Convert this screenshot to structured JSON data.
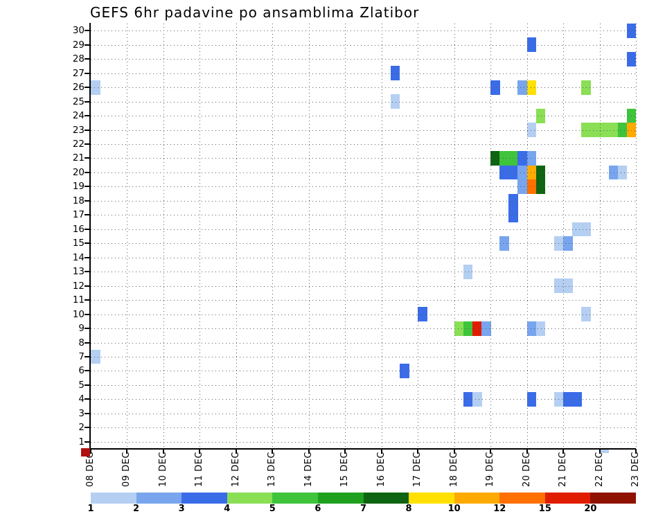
{
  "title": "GEFS 6hr padavine po ansamblima Zlatibor",
  "chart_data": {
    "type": "heatmap",
    "title": "GEFS 6hr padavine po ansamblima Zlatibor",
    "x_axis": {
      "labels": [
        "08 DEC",
        "09 DEC",
        "10 DEC",
        "11 DEC",
        "12 DEC",
        "13 DEC",
        "14 DEC",
        "15 DEC",
        "16 DEC",
        "17 DEC",
        "18 DEC",
        "19 DEC",
        "20 DEC",
        "21 DEC",
        "22 DEC",
        "23 DEC"
      ],
      "steps_per_day": 4,
      "step_hours": 6
    },
    "y_axis": {
      "min": 1,
      "max": 30,
      "tick_labels": [
        "1",
        "2",
        "3",
        "4",
        "5",
        "6",
        "7",
        "8",
        "9",
        "10",
        "11",
        "12",
        "13",
        "14",
        "15",
        "16",
        "17",
        "18",
        "19",
        "20",
        "21",
        "22",
        "23",
        "24",
        "25",
        "26",
        "27",
        "28",
        "29",
        "30"
      ]
    },
    "legend": {
      "thresholds": [
        "1",
        "2",
        "3",
        "4",
        "5",
        "6",
        "7",
        "8",
        "10",
        "12",
        "15",
        "20"
      ],
      "colors": [
        "#b4cff2",
        "#78a5ee",
        "#3a6ce8",
        "#8adf55",
        "#3fc43c",
        "#1fa01f",
        "#0e6412",
        "#ffe000",
        "#ffaa00",
        "#ff7000",
        "#e01d00",
        "#8f1200"
      ]
    },
    "grid_style": "dotted",
    "cell_format": [
      "member",
      "step_6hr_from_08DEC00",
      "color_level_index"
    ],
    "cells": [
      [
        30,
        59,
        2
      ],
      [
        29,
        48,
        2
      ],
      [
        28,
        59,
        2
      ],
      [
        27,
        33,
        2
      ],
      [
        26,
        0,
        0
      ],
      [
        26,
        44,
        2
      ],
      [
        26,
        47,
        1
      ],
      [
        26,
        48,
        7
      ],
      [
        26,
        54,
        3
      ],
      [
        25,
        33,
        0
      ],
      [
        24,
        49,
        3
      ],
      [
        24,
        59,
        4
      ],
      [
        23,
        48,
        0
      ],
      [
        23,
        54,
        3
      ],
      [
        23,
        55,
        3
      ],
      [
        23,
        56,
        3
      ],
      [
        23,
        57,
        3
      ],
      [
        23,
        58,
        4
      ],
      [
        23,
        59,
        8
      ],
      [
        21,
        44,
        6
      ],
      [
        21,
        45,
        4
      ],
      [
        21,
        46,
        4
      ],
      [
        21,
        47,
        2
      ],
      [
        21,
        48,
        1
      ],
      [
        20,
        45,
        2
      ],
      [
        20,
        46,
        2
      ],
      [
        20,
        47,
        1
      ],
      [
        20,
        48,
        8
      ],
      [
        20,
        49,
        6
      ],
      [
        20,
        57,
        1
      ],
      [
        20,
        58,
        0
      ],
      [
        19,
        47,
        1
      ],
      [
        19,
        48,
        9
      ],
      [
        19,
        49,
        6
      ],
      [
        18,
        46,
        2
      ],
      [
        17,
        46,
        2
      ],
      [
        16,
        53,
        0
      ],
      [
        16,
        54,
        0
      ],
      [
        15,
        45,
        1
      ],
      [
        15,
        51,
        0
      ],
      [
        15,
        52,
        1
      ],
      [
        13,
        41,
        0
      ],
      [
        12,
        51,
        0
      ],
      [
        12,
        52,
        0
      ],
      [
        10,
        36,
        2
      ],
      [
        10,
        54,
        0
      ],
      [
        9,
        40,
        3
      ],
      [
        9,
        41,
        4
      ],
      [
        9,
        42,
        10
      ],
      [
        9,
        43,
        1
      ],
      [
        9,
        48,
        1
      ],
      [
        9,
        49,
        0
      ],
      [
        7,
        0,
        0
      ],
      [
        6,
        34,
        2
      ],
      [
        4,
        41,
        2
      ],
      [
        4,
        42,
        0
      ],
      [
        4,
        48,
        2
      ],
      [
        4,
        51,
        0
      ],
      [
        4,
        52,
        2
      ],
      [
        4,
        53,
        2
      ]
    ],
    "stray_marks": {
      "below_axis_cell": {
        "step": 56,
        "level": 0
      },
      "origin_square": {
        "color": "#b01010"
      }
    }
  }
}
